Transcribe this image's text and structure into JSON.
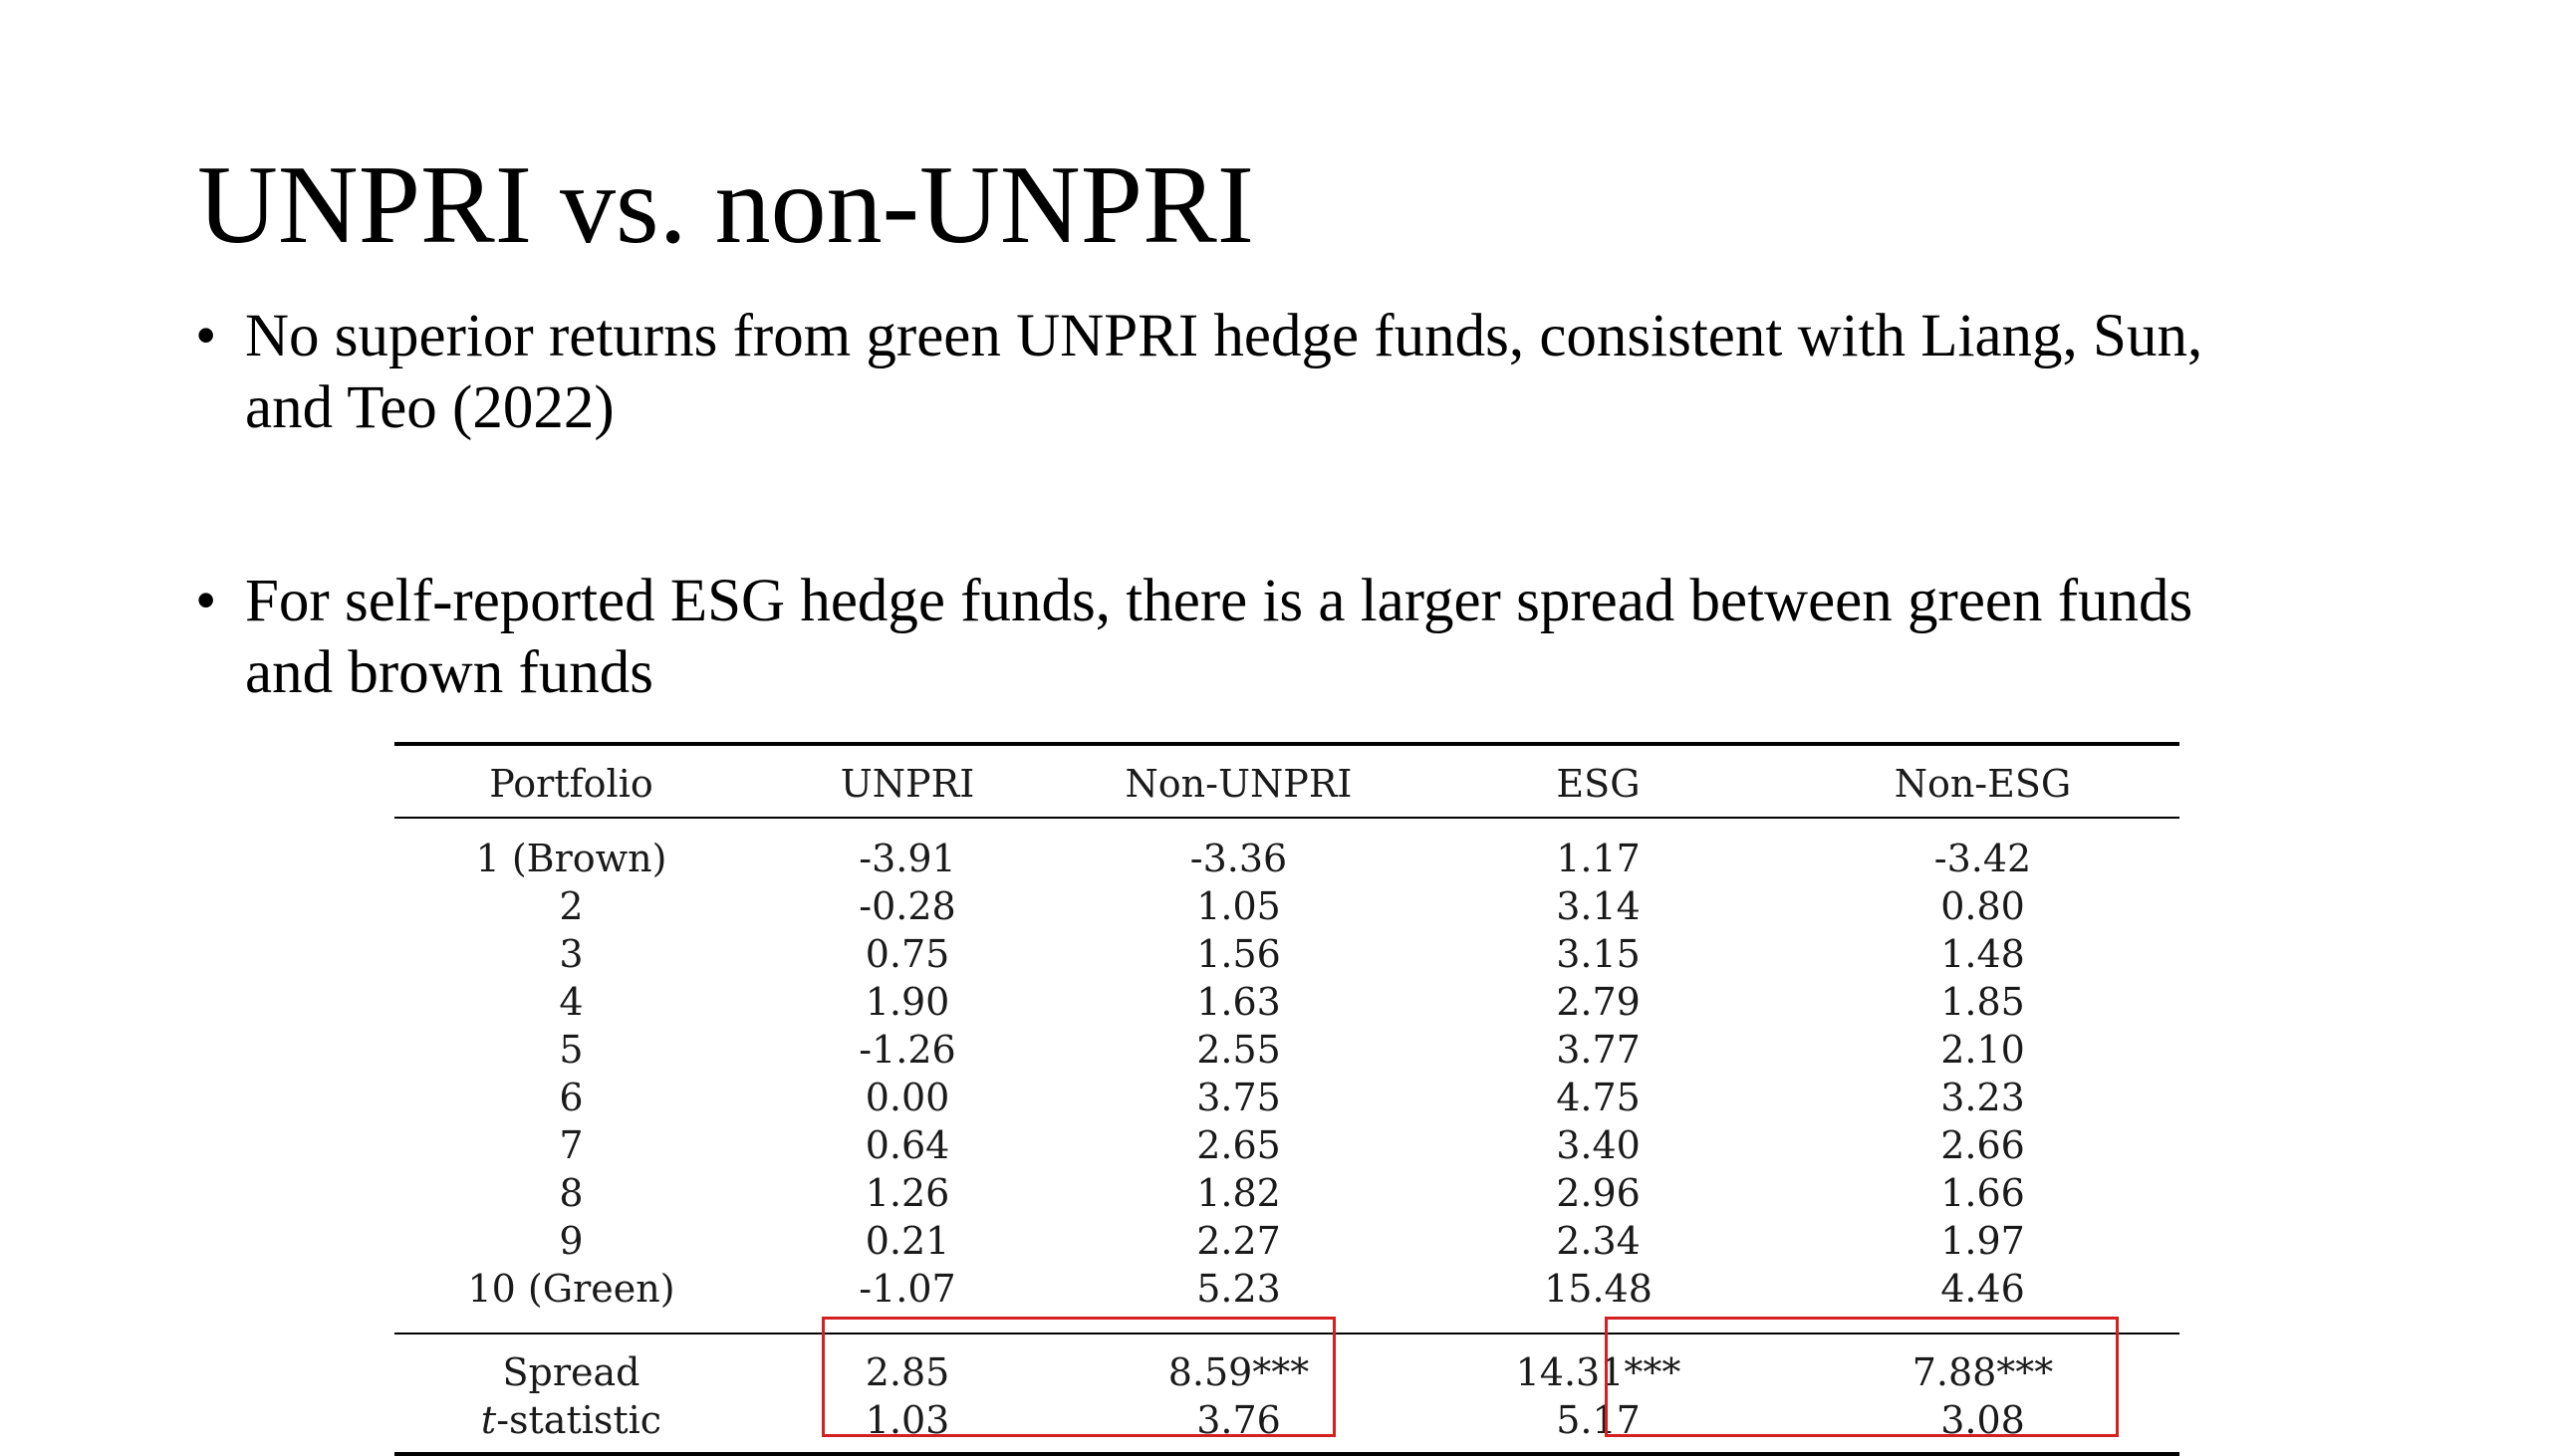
{
  "slide": {
    "title": "UNPRI vs. non-UNPRI",
    "bullets": [
      {
        "marker": "•",
        "line1": "No superior returns from green UNPRI hedge funds, consistent with Liang, Sun,",
        "line2": "and Teo (2022)"
      },
      {
        "marker": "•",
        "line1": "For self-reported ESG hedge funds, there is a larger spread between green funds",
        "line2": "and brown funds"
      }
    ]
  },
  "table": {
    "headers": [
      "Portfolio",
      "UNPRI",
      "Non-UNPRI",
      "ESG",
      "Non-ESG"
    ],
    "rows": [
      [
        "1 (Brown)",
        "-3.91",
        "-3.36",
        "1.17",
        "-3.42"
      ],
      [
        "2",
        "-0.28",
        "1.05",
        "3.14",
        "0.80"
      ],
      [
        "3",
        "0.75",
        "1.56",
        "3.15",
        "1.48"
      ],
      [
        "4",
        "1.90",
        "1.63",
        "2.79",
        "1.85"
      ],
      [
        "5",
        "-1.26",
        "2.55",
        "3.77",
        "2.10"
      ],
      [
        "6",
        "0.00",
        "3.75",
        "4.75",
        "3.23"
      ],
      [
        "7",
        "0.64",
        "2.65",
        "3.40",
        "2.66"
      ],
      [
        "8",
        "1.26",
        "1.82",
        "2.96",
        "1.66"
      ],
      [
        "9",
        "0.21",
        "2.27",
        "2.34",
        "1.97"
      ],
      [
        "10 (Green)",
        "-1.07",
        "5.23",
        "15.48",
        "4.46"
      ]
    ],
    "spread": {
      "label": "Spread",
      "values": [
        "2.85",
        "8.59***",
        "14.31***",
        "7.88***"
      ]
    },
    "tstat": {
      "label_prefix": "t",
      "label_suffix": "-statistic",
      "values": [
        "1.03",
        "3.76",
        "5.17",
        "3.08"
      ]
    }
  },
  "colors": {
    "highlight_border": "#d42020"
  }
}
